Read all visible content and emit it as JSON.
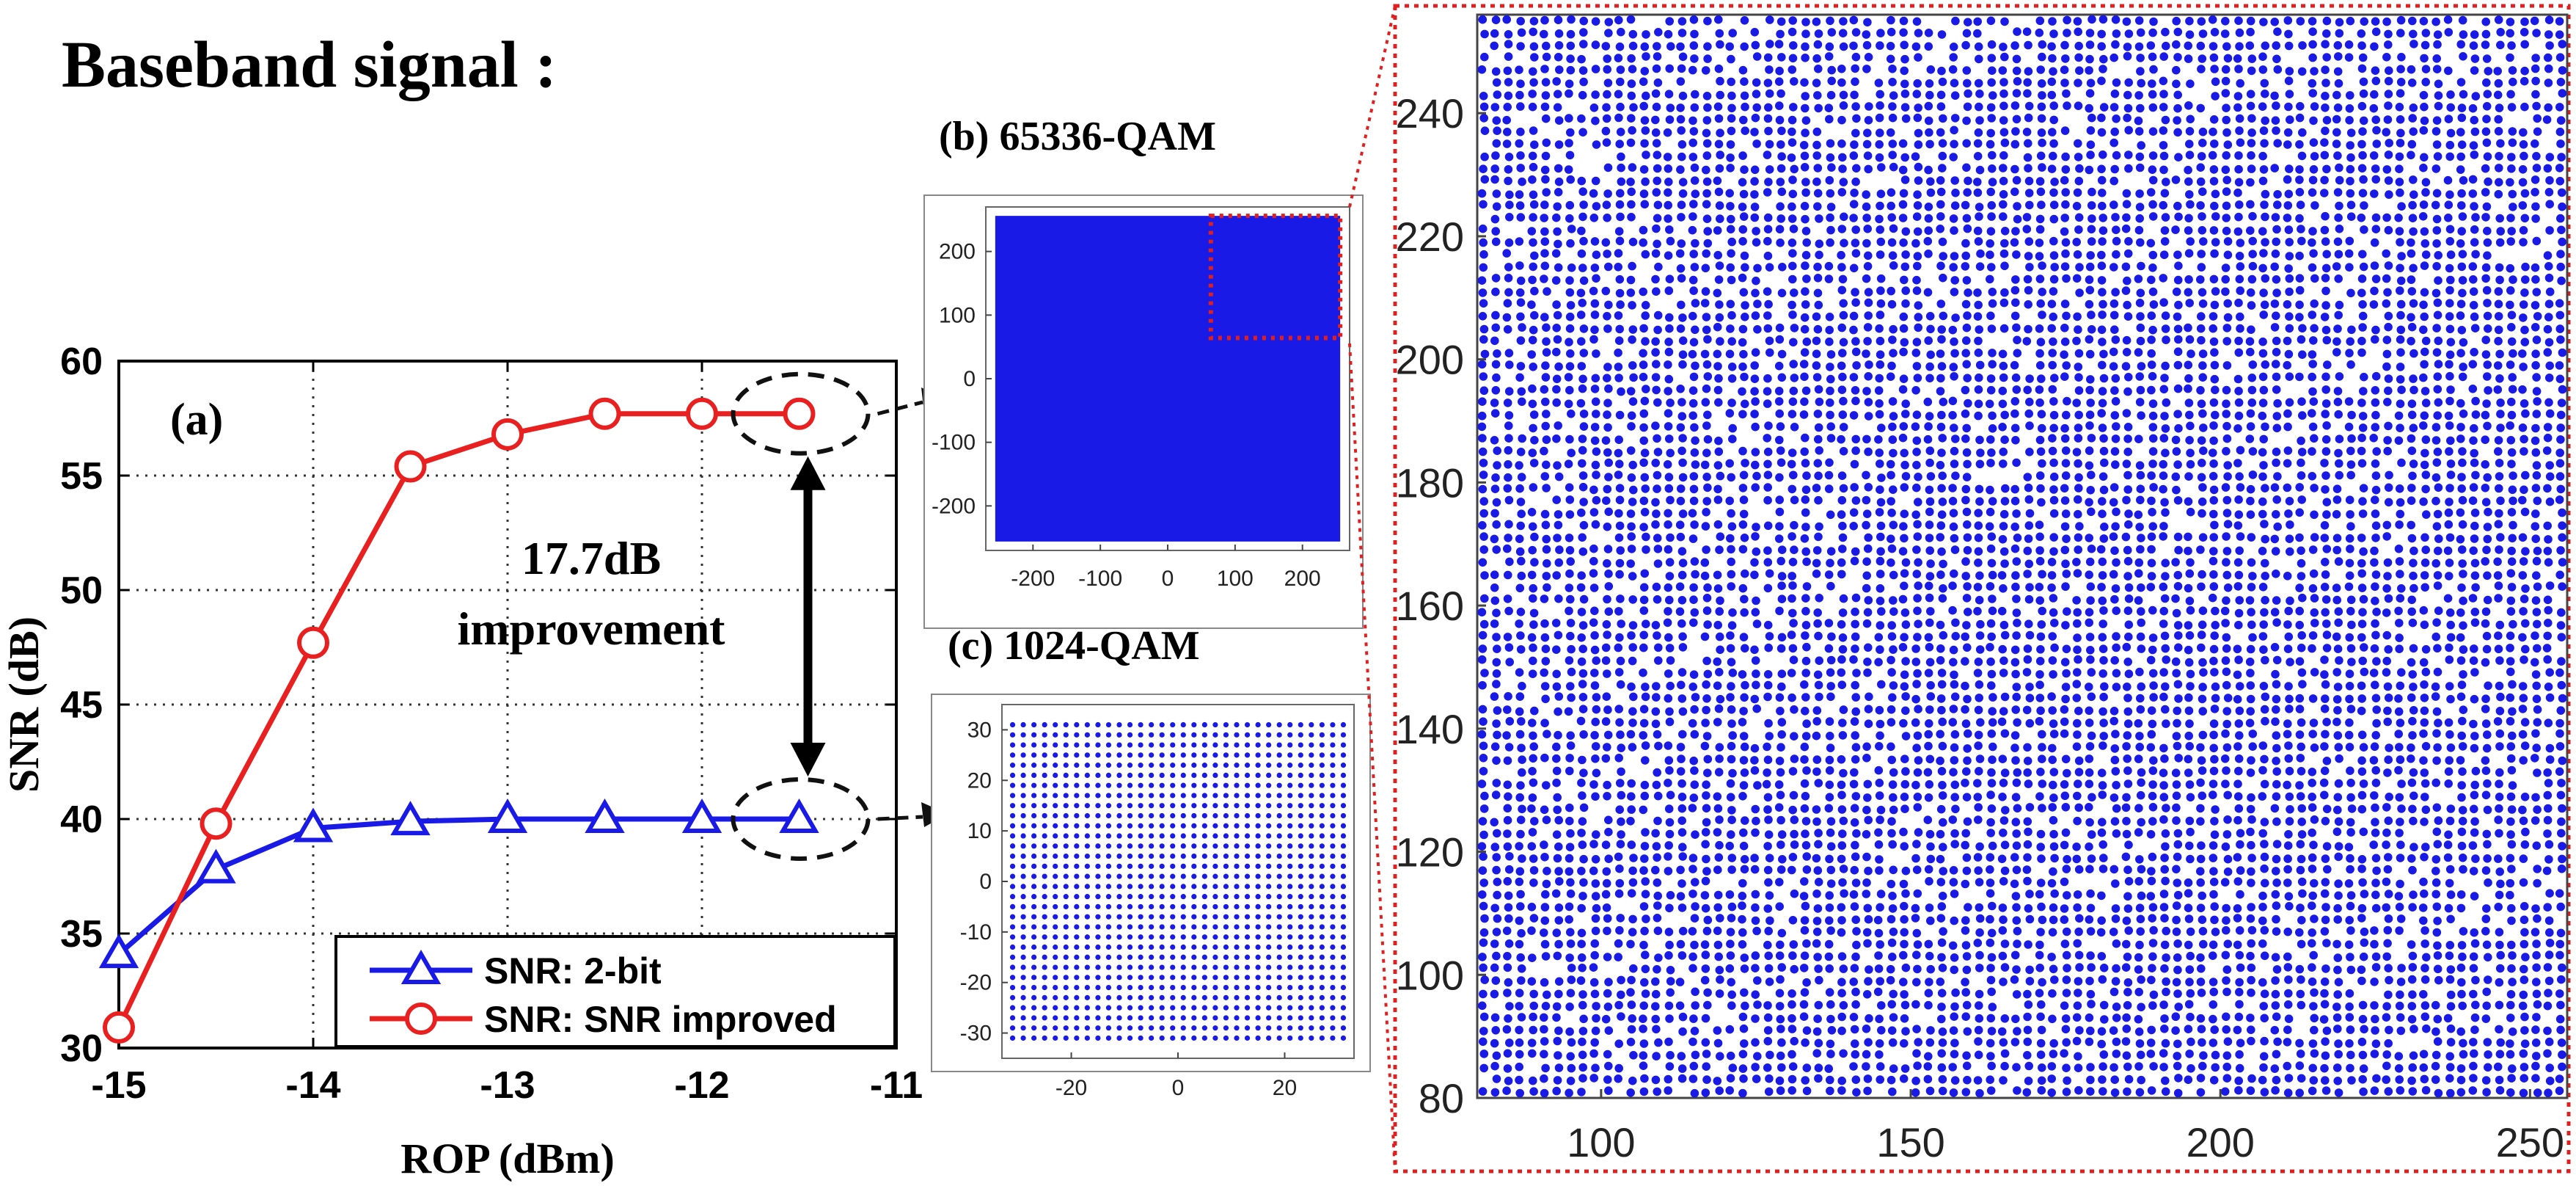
{
  "header": {
    "title": "Baseband signal :"
  },
  "colors": {
    "blue": "#1a1ae6",
    "red": "#e82020",
    "zoom_border": "#e02020"
  },
  "chart_data": [
    {
      "type": "line",
      "panel_label": "(a)",
      "xlabel": "ROP (dBm)",
      "ylabel": "SNR (dB)",
      "xlim": [
        -15,
        -11
      ],
      "ylim": [
        30,
        60
      ],
      "x_ticks": [
        -15,
        -14,
        -13,
        -12,
        -11
      ],
      "y_ticks": [
        30,
        35,
        40,
        45,
        50,
        55,
        60
      ],
      "x_tick_labels": [
        "-15",
        "-14",
        "-13",
        "-12",
        "-11"
      ],
      "y_tick_labels": [
        "30",
        "35",
        "40",
        "45",
        "50",
        "55",
        "60"
      ],
      "grid": true,
      "legend_position": "bottom-right",
      "x": [
        -15,
        -14.5,
        -14,
        -13.5,
        -13,
        -12.5,
        -12,
        -11.5
      ],
      "series": [
        {
          "name": "SNR: 2-bit",
          "marker": "triangle",
          "color": "#1a1ae6",
          "values": [
            34.1,
            37.8,
            39.6,
            39.9,
            40.0,
            40.0,
            40.0,
            40.0
          ]
        },
        {
          "name": "SNR: SNR improved",
          "marker": "circle",
          "color": "#e82020",
          "values": [
            30.9,
            39.8,
            47.7,
            55.4,
            56.8,
            57.7,
            57.7,
            57.7
          ]
        }
      ],
      "annotations": [
        {
          "text_line1": "17.7dB",
          "text_line2": "improvement"
        }
      ]
    },
    {
      "type": "scatter",
      "title": "(b) 65336-QAM",
      "xlim": [
        -270,
        270
      ],
      "ylim": [
        -270,
        270
      ],
      "x_ticks": [
        -200,
        -100,
        0,
        100,
        200
      ],
      "y_ticks": [
        -200,
        -100,
        0,
        100,
        200
      ],
      "x_tick_labels": [
        "-200",
        "-100",
        "0",
        "100",
        "200"
      ],
      "y_tick_labels": [
        "-200",
        "-100",
        "0",
        "100",
        "200"
      ],
      "zoom_region": {
        "x": [
          64,
          256
        ],
        "y": [
          64,
          256
        ]
      }
    },
    {
      "type": "scatter",
      "title": "(c) 1024-QAM",
      "xlim": [
        -33,
        33
      ],
      "ylim": [
        -35,
        35
      ],
      "x_ticks": [
        -20,
        0,
        20
      ],
      "y_ticks": [
        -30,
        -20,
        -10,
        0,
        10,
        20,
        30
      ],
      "x_tick_labels": [
        "-20",
        "0",
        "20"
      ],
      "y_tick_labels": [
        "-30",
        "-20",
        "-10",
        "0",
        "10",
        "20",
        "30"
      ],
      "grid_points": {
        "min": -31,
        "max": 31,
        "step": 2
      }
    },
    {
      "type": "scatter",
      "title": "",
      "xlim": [
        80,
        256
      ],
      "ylim": [
        80,
        256
      ],
      "x_ticks": [
        100,
        150,
        200,
        250
      ],
      "y_ticks": [
        80,
        100,
        120,
        140,
        160,
        180,
        200,
        220,
        240
      ],
      "x_tick_labels": [
        "100",
        "150",
        "200",
        "250"
      ],
      "y_tick_labels": [
        "80",
        "100",
        "120",
        "140",
        "160",
        "180",
        "200",
        "220",
        "240"
      ]
    }
  ]
}
